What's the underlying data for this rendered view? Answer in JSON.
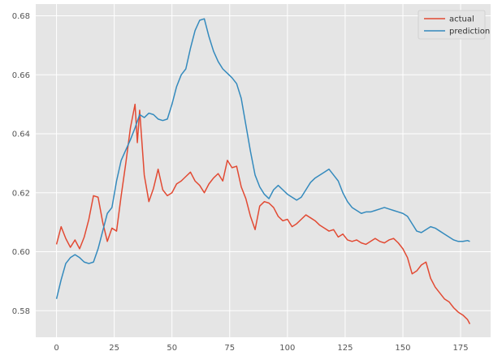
{
  "chart_data": {
    "type": "line",
    "title": "",
    "xlabel": "",
    "ylabel": "",
    "xlim": [
      -9,
      188
    ],
    "ylim": [
      0.571,
      0.684
    ],
    "x_ticks": [
      0,
      25,
      50,
      75,
      100,
      125,
      150,
      175
    ],
    "y_ticks": [
      0.58,
      0.6,
      0.62,
      0.64,
      0.66,
      0.68
    ],
    "x_tick_labels": [
      "0",
      "25",
      "50",
      "75",
      "100",
      "125",
      "150",
      "175"
    ],
    "y_tick_labels": [
      "0.58",
      "0.60",
      "0.62",
      "0.64",
      "0.66",
      "0.68"
    ],
    "grid": true,
    "legend_position": "top-right",
    "series": [
      {
        "name": "actual",
        "color": "#E24A33",
        "x": [
          0,
          2,
          4,
          6,
          8,
          10,
          12,
          14,
          16,
          18,
          20,
          22,
          24,
          26,
          28,
          30,
          32,
          34,
          35,
          36,
          38,
          40,
          42,
          44,
          46,
          48,
          50,
          52,
          54,
          56,
          58,
          60,
          62,
          64,
          66,
          68,
          70,
          72,
          74,
          76,
          78,
          80,
          82,
          84,
          86,
          88,
          90,
          92,
          94,
          96,
          98,
          100,
          102,
          104,
          106,
          108,
          110,
          112,
          114,
          116,
          118,
          120,
          122,
          124,
          126,
          128,
          130,
          132,
          134,
          136,
          138,
          140,
          142,
          144,
          146,
          148,
          150,
          152,
          154,
          156,
          158,
          160,
          162,
          164,
          166,
          168,
          170,
          172,
          174,
          176,
          178,
          179
        ],
        "y": [
          0.6025,
          0.6085,
          0.6045,
          0.6015,
          0.604,
          0.601,
          0.605,
          0.611,
          0.619,
          0.6185,
          0.61,
          0.6035,
          0.608,
          0.607,
          0.619,
          0.63,
          0.642,
          0.65,
          0.637,
          0.648,
          0.626,
          0.617,
          0.6215,
          0.628,
          0.621,
          0.619,
          0.62,
          0.623,
          0.624,
          0.6255,
          0.627,
          0.624,
          0.6225,
          0.62,
          0.623,
          0.625,
          0.6265,
          0.624,
          0.631,
          0.6285,
          0.629,
          0.622,
          0.618,
          0.612,
          0.6075,
          0.6155,
          0.617,
          0.6165,
          0.615,
          0.612,
          0.6105,
          0.611,
          0.6085,
          0.6095,
          0.611,
          0.6125,
          0.6115,
          0.6105,
          0.609,
          0.608,
          0.607,
          0.6075,
          0.605,
          0.606,
          0.604,
          0.6035,
          0.604,
          0.603,
          0.6025,
          0.6035,
          0.6045,
          0.6035,
          0.603,
          0.604,
          0.6045,
          0.603,
          0.601,
          0.598,
          0.5925,
          0.5935,
          0.5955,
          0.5965,
          0.591,
          0.588,
          0.586,
          0.584,
          0.583,
          0.581,
          0.5795,
          0.5785,
          0.577,
          0.5755
        ]
      },
      {
        "name": "prediction",
        "color": "#348ABD",
        "x": [
          0,
          2,
          4,
          6,
          8,
          10,
          12,
          14,
          16,
          18,
          20,
          22,
          24,
          26,
          28,
          30,
          32,
          34,
          36,
          38,
          40,
          42,
          44,
          46,
          48,
          50,
          52,
          54,
          56,
          58,
          60,
          62,
          64,
          66,
          68,
          70,
          72,
          74,
          76,
          78,
          80,
          82,
          84,
          86,
          88,
          90,
          92,
          94,
          96,
          98,
          100,
          102,
          104,
          106,
          108,
          110,
          112,
          114,
          116,
          118,
          120,
          122,
          124,
          126,
          128,
          130,
          132,
          134,
          136,
          138,
          140,
          142,
          144,
          146,
          148,
          150,
          152,
          154,
          156,
          158,
          160,
          162,
          164,
          166,
          168,
          170,
          172,
          174,
          176,
          178,
          179
        ],
        "y": [
          0.584,
          0.5905,
          0.596,
          0.598,
          0.599,
          0.598,
          0.5965,
          0.596,
          0.5965,
          0.601,
          0.607,
          0.613,
          0.615,
          0.624,
          0.631,
          0.6345,
          0.638,
          0.642,
          0.6465,
          0.6455,
          0.647,
          0.6465,
          0.645,
          0.6445,
          0.645,
          0.65,
          0.656,
          0.66,
          0.662,
          0.669,
          0.675,
          0.6785,
          0.679,
          0.673,
          0.668,
          0.6645,
          0.662,
          0.6605,
          0.659,
          0.657,
          0.652,
          0.643,
          0.634,
          0.626,
          0.622,
          0.6195,
          0.618,
          0.621,
          0.6225,
          0.621,
          0.6195,
          0.6185,
          0.6175,
          0.6185,
          0.621,
          0.6235,
          0.625,
          0.626,
          0.627,
          0.628,
          0.626,
          0.624,
          0.62,
          0.617,
          0.615,
          0.614,
          0.613,
          0.6135,
          0.6135,
          0.614,
          0.6145,
          0.615,
          0.6145,
          0.614,
          0.6135,
          0.613,
          0.612,
          0.6095,
          0.607,
          0.6065,
          0.6075,
          0.6085,
          0.608,
          0.607,
          0.606,
          0.605,
          0.604,
          0.6035,
          0.6035,
          0.6038,
          0.6035
        ]
      }
    ]
  }
}
